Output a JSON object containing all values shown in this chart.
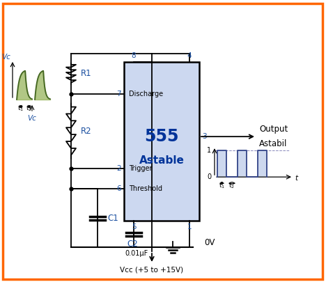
{
  "border_color": "#ff6600",
  "ic_fill": "#ccd8f0",
  "blue": "#1a4fa0",
  "dark_blue": "#003399",
  "sq_color": "#334488",
  "sq_fill": "#b8c8e8",
  "curve_color": "#446622",
  "curve_fill": "#88aa44",
  "vcc_label": "Vcc (+5 to +15V)",
  "ov_label": "0V",
  "r1_label": "R1",
  "r2_label": "R2",
  "c1_label": "C1",
  "c2_label": "C2",
  "c2_val": "0.01μF",
  "vc_label": "Vc",
  "output_label1": "Output",
  "output_label2": "Astabil",
  "ic_main": "555",
  "ic_sub": "Astable",
  "pin_discharge": "Discharge",
  "pin_trigger": "Trigger",
  "pin_threshold": "Threshold"
}
